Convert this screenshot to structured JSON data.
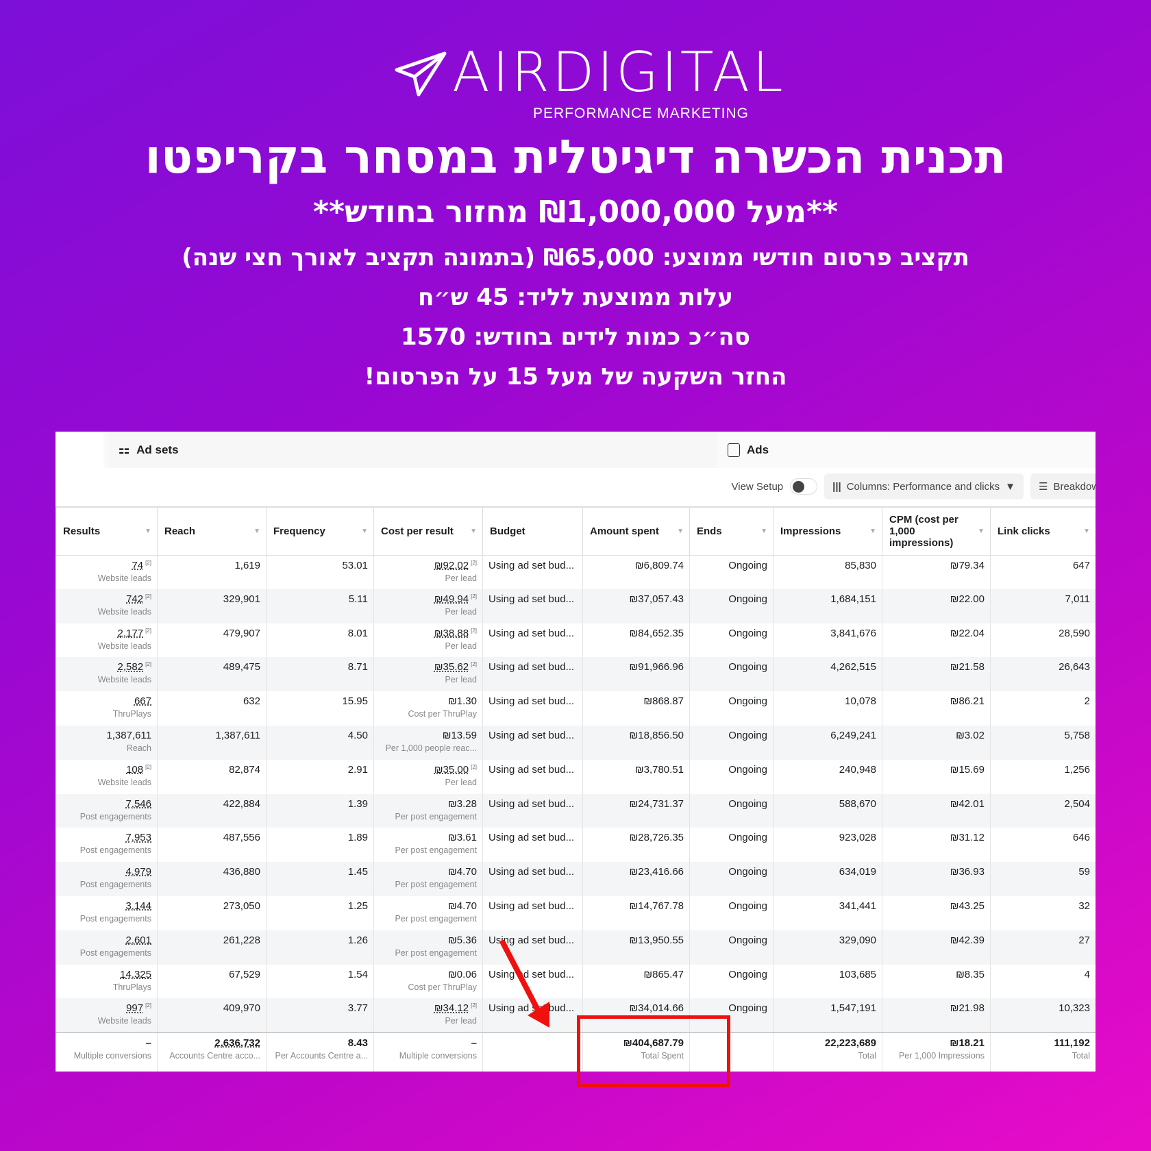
{
  "logo": {
    "name": "AIRDIGITAL",
    "tagline": "PERFORMANCE MARKETING"
  },
  "headline": {
    "title": "תכנית הכשרה דיגיטלית במסחר בקריפטו",
    "subtitle": "**מעל ₪1,000,000 מחזור בחודש**",
    "lines": [
      "תקציב פרסום חודשי ממוצע: ₪65,000 (בתמונה תקציב לאורך חצי שנה)",
      "עלות ממוצעת לליד: 45 ש״ח",
      "סה״כ כמות לידים בחודש: 1570",
      "החזר השקעה של מעל 15 על הפרסום!"
    ]
  },
  "tabs": {
    "adsets": "Ad sets",
    "ads": "Ads"
  },
  "toolbar": {
    "view_setup": "View Setup",
    "columns": "Columns: Performance and clicks",
    "breakdown": "Breakdown"
  },
  "columns": [
    "Results",
    "Reach",
    "Frequency",
    "Cost per result",
    "Budget",
    "Amount spent",
    "Ends",
    "Impressions",
    "CPM (cost per 1,000 impressions)",
    "Link clicks"
  ],
  "rows": [
    {
      "results": "74",
      "sup": "[2]",
      "rtype": "Website leads",
      "reach": "1,619",
      "freq": "53.01",
      "cpr": "₪92.02",
      "csup": "[2]",
      "ctype": "Per lead",
      "budget": "Using ad set bud...",
      "spent": "₪6,809.74",
      "ends": "Ongoing",
      "impr": "85,830",
      "cpm": "₪79.34",
      "clicks": "647"
    },
    {
      "results": "742",
      "sup": "[2]",
      "rtype": "Website leads",
      "reach": "329,901",
      "freq": "5.11",
      "cpr": "₪49.94",
      "csup": "[2]",
      "ctype": "Per lead",
      "budget": "Using ad set bud...",
      "spent": "₪37,057.43",
      "ends": "Ongoing",
      "impr": "1,684,151",
      "cpm": "₪22.00",
      "clicks": "7,011"
    },
    {
      "results": "2,177",
      "sup": "[2]",
      "rtype": "Website leads",
      "reach": "479,907",
      "freq": "8.01",
      "cpr": "₪38.88",
      "csup": "[2]",
      "ctype": "Per lead",
      "budget": "Using ad set bud...",
      "spent": "₪84,652.35",
      "ends": "Ongoing",
      "impr": "3,841,676",
      "cpm": "₪22.04",
      "clicks": "28,590"
    },
    {
      "results": "2,582",
      "sup": "[2]",
      "rtype": "Website leads",
      "reach": "489,475",
      "freq": "8.71",
      "cpr": "₪35.62",
      "csup": "[2]",
      "ctype": "Per lead",
      "budget": "Using ad set bud...",
      "spent": "₪91,966.96",
      "ends": "Ongoing",
      "impr": "4,262,515",
      "cpm": "₪21.58",
      "clicks": "26,643"
    },
    {
      "results": "667",
      "sup": "",
      "rtype": "ThruPlays",
      "reach": "632",
      "freq": "15.95",
      "cpr": "₪1.30",
      "csup": "",
      "ctype": "Cost per ThruPlay",
      "budget": "Using ad set bud...",
      "spent": "₪868.87",
      "ends": "Ongoing",
      "impr": "10,078",
      "cpm": "₪86.21",
      "clicks": "2"
    },
    {
      "results": "1,387,611",
      "sup": "",
      "rtype": "Reach",
      "reach": "1,387,611",
      "freq": "4.50",
      "cpr": "₪13.59",
      "csup": "",
      "ctype": "Per 1,000 people reac...",
      "budget": "Using ad set bud...",
      "spent": "₪18,856.50",
      "ends": "Ongoing",
      "impr": "6,249,241",
      "cpm": "₪3.02",
      "clicks": "5,758"
    },
    {
      "results": "108",
      "sup": "[2]",
      "rtype": "Website leads",
      "reach": "82,874",
      "freq": "2.91",
      "cpr": "₪35.00",
      "csup": "[2]",
      "ctype": "Per lead",
      "budget": "Using ad set bud...",
      "spent": "₪3,780.51",
      "ends": "Ongoing",
      "impr": "240,948",
      "cpm": "₪15.69",
      "clicks": "1,256"
    },
    {
      "results": "7,546",
      "sup": "",
      "rtype": "Post engagements",
      "reach": "422,884",
      "freq": "1.39",
      "cpr": "₪3.28",
      "csup": "",
      "ctype": "Per post engagement",
      "budget": "Using ad set bud...",
      "spent": "₪24,731.37",
      "ends": "Ongoing",
      "impr": "588,670",
      "cpm": "₪42.01",
      "clicks": "2,504"
    },
    {
      "results": "7,953",
      "sup": "",
      "rtype": "Post engagements",
      "reach": "487,556",
      "freq": "1.89",
      "cpr": "₪3.61",
      "csup": "",
      "ctype": "Per post engagement",
      "budget": "Using ad set bud...",
      "spent": "₪28,726.35",
      "ends": "Ongoing",
      "impr": "923,028",
      "cpm": "₪31.12",
      "clicks": "646"
    },
    {
      "results": "4,979",
      "sup": "",
      "rtype": "Post engagements",
      "reach": "436,880",
      "freq": "1.45",
      "cpr": "₪4.70",
      "csup": "",
      "ctype": "Per post engagement",
      "budget": "Using ad set bud...",
      "spent": "₪23,416.66",
      "ends": "Ongoing",
      "impr": "634,019",
      "cpm": "₪36.93",
      "clicks": "59"
    },
    {
      "results": "3,144",
      "sup": "",
      "rtype": "Post engagements",
      "reach": "273,050",
      "freq": "1.25",
      "cpr": "₪4.70",
      "csup": "",
      "ctype": "Per post engagement",
      "budget": "Using ad set bud...",
      "spent": "₪14,767.78",
      "ends": "Ongoing",
      "impr": "341,441",
      "cpm": "₪43.25",
      "clicks": "32"
    },
    {
      "results": "2,601",
      "sup": "",
      "rtype": "Post engagements",
      "reach": "261,228",
      "freq": "1.26",
      "cpr": "₪5.36",
      "csup": "",
      "ctype": "Per post engagement",
      "budget": "Using ad set bud...",
      "spent": "₪13,950.55",
      "ends": "Ongoing",
      "impr": "329,090",
      "cpm": "₪42.39",
      "clicks": "27"
    },
    {
      "results": "14,325",
      "sup": "",
      "rtype": "ThruPlays",
      "reach": "67,529",
      "freq": "1.54",
      "cpr": "₪0.06",
      "csup": "",
      "ctype": "Cost per ThruPlay",
      "budget": "Using ad set bud...",
      "spent": "₪865.47",
      "ends": "Ongoing",
      "impr": "103,685",
      "cpm": "₪8.35",
      "clicks": "4"
    },
    {
      "results": "997",
      "sup": "[2]",
      "rtype": "Website leads",
      "reach": "409,970",
      "freq": "3.77",
      "cpr": "₪34.12",
      "csup": "[2]",
      "ctype": "Per lead",
      "budget": "Using ad set bud...",
      "spent": "₪34,014.66",
      "ends": "Ongoing",
      "impr": "1,547,191",
      "cpm": "₪21.98",
      "clicks": "10,323"
    }
  ],
  "totals": {
    "results": "–",
    "rtype": "Multiple conversions",
    "reach": "2,636,732",
    "reach_sub": "Accounts Centre acco...",
    "freq": "8.43",
    "freq_sub": "Per Accounts Centre a...",
    "cpr": "–",
    "cpr_sub": "Multiple conversions",
    "spent": "₪404,687.79",
    "spent_sub": "Total Spent",
    "impr": "22,223,689",
    "impr_sub": "Total",
    "cpm": "₪18.21",
    "cpm_sub": "Per 1,000 Impressions",
    "clicks": "111,192",
    "clicks_sub": "Total"
  },
  "colors": {
    "highlight": "#f01010",
    "bg_start": "#7c0fd8",
    "bg_end": "#e80cc8"
  }
}
